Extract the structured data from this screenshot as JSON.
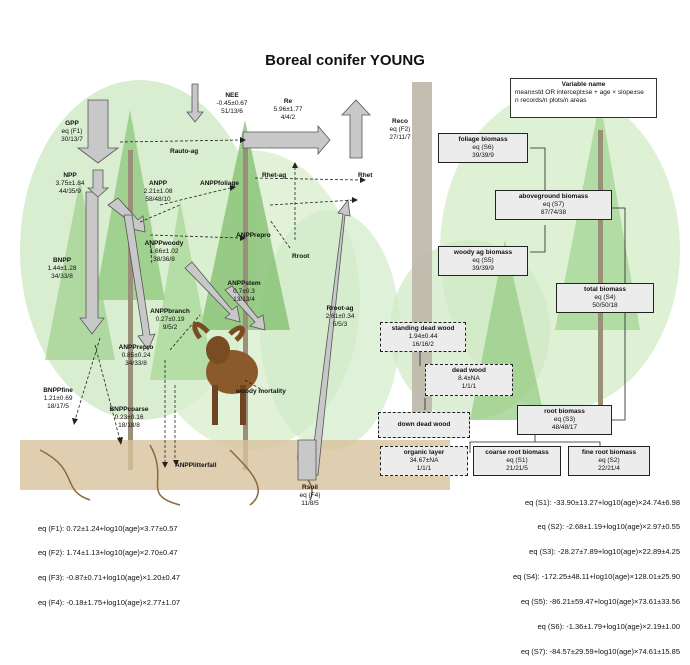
{
  "title": "Boreal conifer YOUNG",
  "legend": {
    "title": "Variable name",
    "line1": "mean±std OR intercept±se + age × slope±se",
    "line2": "n records/n plots/n areas"
  },
  "fluxes": [
    {
      "id": "gpp",
      "name": "GPP",
      "line1": "eq (F1)",
      "line2": "30/13/7"
    },
    {
      "id": "npp",
      "name": "NPP",
      "line1": "3.75±1.84",
      "line2": "44/35/9"
    },
    {
      "id": "bnpp",
      "name": "BNPP",
      "line1": "1.44±1.28",
      "line2": "34/33/8"
    },
    {
      "id": "bnpp_fine",
      "name": "BNPPfine",
      "line1": "1.21±0.69",
      "line2": "18/17/5"
    },
    {
      "id": "bnpp_coarse",
      "name": "BNPPcoarse",
      "line1": "0.23±0.16",
      "line2": "18/18/8"
    },
    {
      "id": "anpp",
      "name": "ANPP",
      "line1": "2.21±1.08",
      "line2": "58/48/10"
    },
    {
      "id": "anpp_woody",
      "name": "ANPPwoody",
      "line1": "1.66±1.02",
      "line2": "38/36/8"
    },
    {
      "id": "anpp_branch",
      "name": "ANPPbranch",
      "line1": "0.27±0.19",
      "line2": "9/5/2"
    },
    {
      "id": "anpp_repro",
      "name": "ANPPrepro",
      "line1": "0.85±0.24",
      "line2": "34/33/8"
    },
    {
      "id": "anpp_stem",
      "name": "ANPPstem",
      "line1": "0.7±0.3",
      "line2": "13/13/4"
    },
    {
      "id": "nee",
      "name": "NEE",
      "line1": "-0.45±0.67",
      "line2": "51/13/6"
    },
    {
      "id": "re",
      "name": "Re",
      "line1": "5.96±1.77",
      "line2": "4/4/2"
    },
    {
      "id": "reco",
      "name": "Reco",
      "line1": "eq (F2)",
      "line2": "27/11/7"
    },
    {
      "id": "rroot_ag",
      "name": "Rroot-ag",
      "line1": "2.61±0.34",
      "line2": "5/5/3"
    },
    {
      "id": "rsoil",
      "name": "Rsoil",
      "line1": "eq (F4)",
      "line2": "11/8/5"
    }
  ],
  "labels": {
    "rauto_ag": "Rauto-ag",
    "anpp_foliage": "ANPPfoliage",
    "anpp_repro_top": "ANPPrepro",
    "rhet_ag": "Rhet-ag",
    "rhet": "Rhet",
    "rroot": "Rroot",
    "anpp_stem_top": "ANPPstem",
    "anpp_litter": "ANPPlitterfall",
    "woody_mortality": "woody mortality"
  },
  "pools": [
    {
      "id": "foliage",
      "name": "foliage biomass",
      "line1": "eq (S6)",
      "line2": "39/39/9",
      "dashed": false
    },
    {
      "id": "aboveground",
      "name": "aboveground biomass",
      "line1": "eq (S7)",
      "line2": "87/74/38",
      "dashed": false
    },
    {
      "id": "woody_ag",
      "name": "woody ag biomass",
      "line1": "eq (S5)",
      "line2": "39/39/9",
      "dashed": false
    },
    {
      "id": "total",
      "name": "total biomass",
      "line1": "eq (S4)",
      "line2": "50/50/18",
      "dashed": false
    },
    {
      "id": "standing_dead",
      "name": "standing dead wood",
      "line1": "1.94±0.44",
      "line2": "16/16/2",
      "dashed": true
    },
    {
      "id": "dead_wood",
      "name": "dead wood",
      "line1": "8.4±NA",
      "line2": "1/1/1",
      "dashed": true
    },
    {
      "id": "down_dead",
      "name": "down dead wood",
      "line1": "",
      "line2": "",
      "dashed": true
    },
    {
      "id": "root",
      "name": "root biomass",
      "line1": "eq (S3)",
      "line2": "48/48/17",
      "dashed": false
    },
    {
      "id": "organic",
      "name": "organic layer",
      "line1": "34.67±NA",
      "line2": "1/1/1",
      "dashed": true
    },
    {
      "id": "coarse_root",
      "name": "coarse root biomass",
      "line1": "eq (S1)",
      "line2": "21/21/5",
      "dashed": false
    },
    {
      "id": "fine_root",
      "name": "fine root biomass",
      "line1": "eq (S2)",
      "line2": "22/21/4",
      "dashed": false
    }
  ],
  "equations_left": [
    "eq (F1): 0.72±1.24+log10(age)×3.77±0.57",
    "eq (F2): 1.74±1.13+log10(age)×2.70±0.47",
    "eq (F3): -0.87±0.71+log10(age)×1.20±0.47",
    "eq (F4): -0.18±1.75+log10(age)×2.77±1.07"
  ],
  "equations_right": [
    "eq (S1): -33.90±13.27+log10(age)×24.74±6.98",
    "eq (S2): -2.68±1.19+log10(age)×2.97±0.55",
    "eq (S3): -28.27±7.89+log10(age)×22.89±4.25",
    "eq (S4): -172.25±48.11+log10(age)×128.01±25.90",
    "eq (S5): -86.21±59.47+log10(age)×73.61±33.56",
    "eq (S6): -1.36±1.79+log10(age)×2.19±1.00",
    "eq (S7): -84.57±29.59+log10(age)×74.61±15.85"
  ],
  "colors": {
    "arrow_fill": "#c8c8c8",
    "pool_fill": "#ececec",
    "foliage_light": "#bfe3b4",
    "foliage_dark": "#6fae5a",
    "trunk": "#b8b2a6",
    "soil": "#c9b08a",
    "roots": "#8a6a3e"
  }
}
